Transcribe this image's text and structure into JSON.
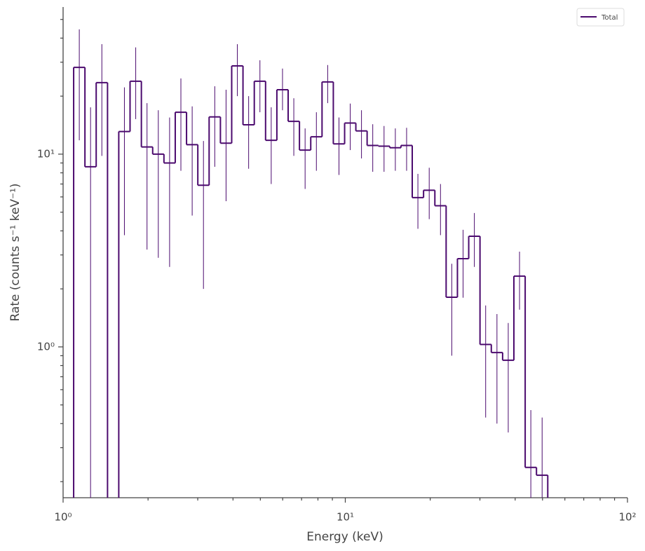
{
  "chart_data": {
    "type": "histogram",
    "xlabel": "Energy (keV)",
    "ylabel": "Rate (counts s⁻¹ keV⁻¹)",
    "xscale": "log",
    "yscale": "log",
    "xlim": [
      1,
      100
    ],
    "ylim": [
      0.165,
      58
    ],
    "xticks": [
      {
        "value": 1,
        "label": "10⁰"
      },
      {
        "value": 10,
        "label": "10¹"
      },
      {
        "value": 100,
        "label": "10²"
      }
    ],
    "yticks": [
      {
        "value": 1,
        "label": "10⁰"
      },
      {
        "value": 10,
        "label": "10¹"
      }
    ],
    "xminorticks": [
      2,
      3,
      4,
      5,
      6,
      7,
      8,
      9,
      20,
      30,
      40,
      50,
      60,
      70,
      80,
      90
    ],
    "yminorticks": [
      0.2,
      0.3,
      0.4,
      0.5,
      0.6,
      0.7,
      0.8,
      0.9,
      2,
      3,
      4,
      5,
      6,
      7,
      8,
      9,
      20,
      30,
      40,
      50
    ],
    "legend": "upper right",
    "series": [
      {
        "name": "Total",
        "color": "#4b0a6e",
        "bins": [
          1.09,
          1.195,
          1.31,
          1.437,
          1.575,
          1.727,
          1.894,
          2.077,
          2.277,
          2.497,
          2.738,
          3.002,
          3.292,
          3.61,
          3.958,
          4.34,
          4.759,
          5.218,
          5.722,
          6.274,
          6.88,
          7.544,
          8.272,
          9.07,
          9.946,
          10.9,
          11.95,
          13.1,
          14.37,
          15.75,
          17.27,
          18.94,
          20.77,
          22.77,
          24.97,
          27.38,
          30.02,
          32.92,
          36.1,
          39.58,
          43.4,
          47.59,
          52.18
        ],
        "values": [
          28.2,
          8.6,
          23.5,
          null,
          13.1,
          23.9,
          10.9,
          10.0,
          9.0,
          16.5,
          11.2,
          6.9,
          15.6,
          11.4,
          28.7,
          14.2,
          23.9,
          11.8,
          21.6,
          14.8,
          10.5,
          12.3,
          23.7,
          11.3,
          14.5,
          13.2,
          11.1,
          11.0,
          10.8,
          11.1,
          5.95,
          6.5,
          5.4,
          1.81,
          2.87,
          3.75,
          1.03,
          0.935,
          0.853,
          2.33,
          0.237,
          0.216
        ],
        "upper": [
          44.4,
          17.5,
          37.2,
          null,
          22.2,
          35.8,
          18.4,
          16.9,
          15.5,
          24.7,
          17.7,
          11.7,
          22.5,
          21.6,
          37.2,
          20.0,
          30.7,
          17.5,
          27.8,
          19.5,
          13.6,
          16.5,
          29.0,
          15.5,
          18.3,
          16.9,
          14.3,
          14.0,
          13.6,
          13.7,
          7.9,
          8.5,
          7.0,
          2.7,
          4.05,
          4.95,
          1.64,
          1.48,
          1.33,
          3.12,
          0.47,
          0.43
        ],
        "lower": [
          11.8,
          null,
          9.8,
          null,
          3.8,
          15.2,
          3.2,
          2.9,
          2.6,
          8.2,
          4.8,
          2.0,
          8.6,
          5.7,
          20.0,
          8.4,
          16.5,
          7.0,
          16.9,
          9.8,
          6.6,
          8.2,
          18.4,
          7.8,
          10.5,
          9.5,
          8.1,
          8.1,
          8.2,
          8.2,
          4.1,
          4.6,
          3.8,
          0.9,
          1.8,
          2.6,
          0.43,
          0.4,
          0.36,
          1.56,
          null,
          null
        ]
      }
    ]
  }
}
